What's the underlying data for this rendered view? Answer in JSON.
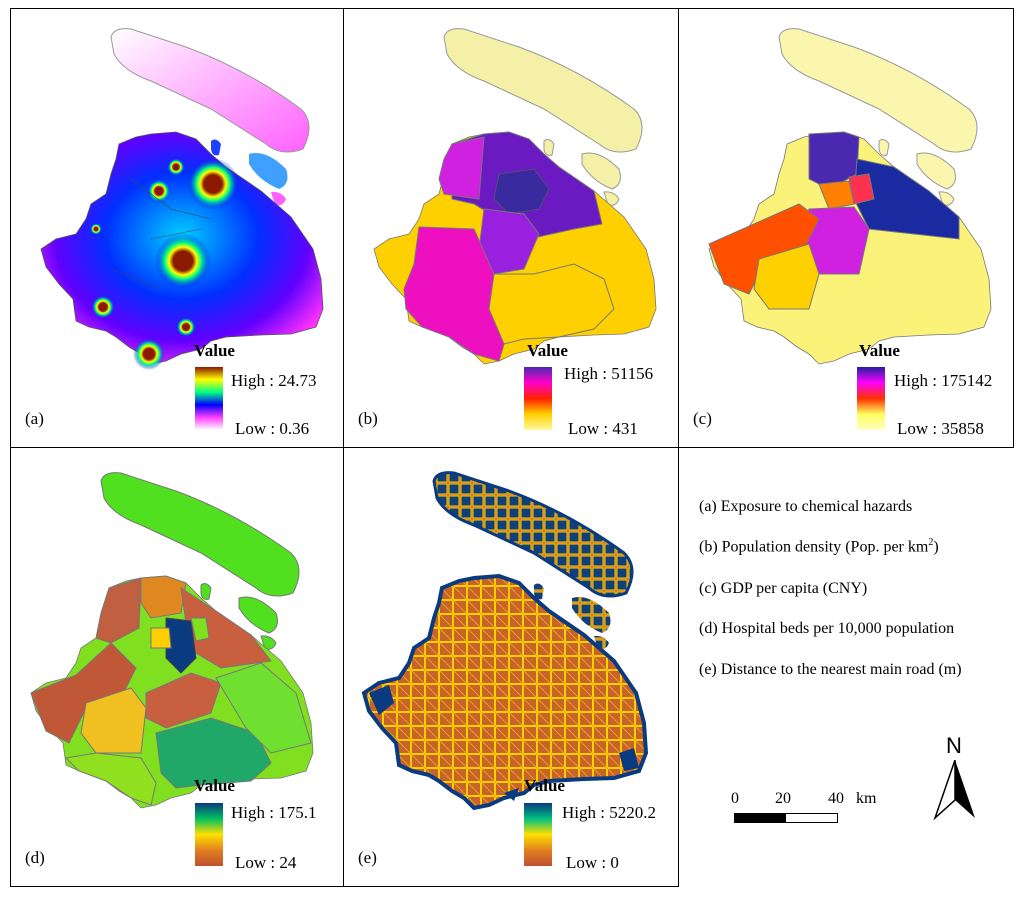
{
  "panels": [
    {
      "letter": "(a)",
      "legend_title": "Value",
      "high": "High : 24.73",
      "low": "Low : 0.36"
    },
    {
      "letter": "(b)",
      "legend_title": "Value",
      "high": "High : 51156",
      "low": "Low : 431"
    },
    {
      "letter": "(c)",
      "legend_title": "Value",
      "high": "High : 175142",
      "low": "Low : 35858"
    },
    {
      "letter": "(d)",
      "legend_title": "Value",
      "high": "High : 175.1",
      "low": "Low : 24"
    },
    {
      "letter": "(e)",
      "legend_title": "Value",
      "high": "High : 5220.2",
      "low": "Low : 0"
    }
  ],
  "legend": {
    "a": "(a) Exposure to chemical hazards",
    "b_prefix": "(b) Population density (Pop. per km",
    "b_sup": "2",
    "b_suffix": ")",
    "c": "(c) GDP per capita (CNY)",
    "d": "(d) Hospital beds per 10,000 population",
    "e": "(e) Distance to the nearest main road (m)"
  },
  "scale_bar": {
    "labels": [
      "0",
      "20",
      "40"
    ],
    "unit": "km"
  },
  "north_arrow": {
    "label": "N"
  },
  "colors": {
    "ramp_a": [
      "#8b1a00",
      "#ffff00",
      "#00ff80",
      "#0000ff",
      "#ff40ff",
      "#ffffff"
    ],
    "ramp_b": [
      "#4b2ab0",
      "#ff00cc",
      "#ff2000",
      "#ffd000",
      "#fffaa0"
    ],
    "ramp_c": [
      "#2020a0",
      "#ff00ff",
      "#ff3000",
      "#ffff60",
      "#ffffc0"
    ],
    "ramp_d": [
      "#0a3a80",
      "#00c060",
      "#ffe000",
      "#e08020",
      "#c05030"
    ],
    "ramp_e": [
      "#0a3a80",
      "#00c080",
      "#ffe000",
      "#e08020",
      "#c05030"
    ]
  }
}
